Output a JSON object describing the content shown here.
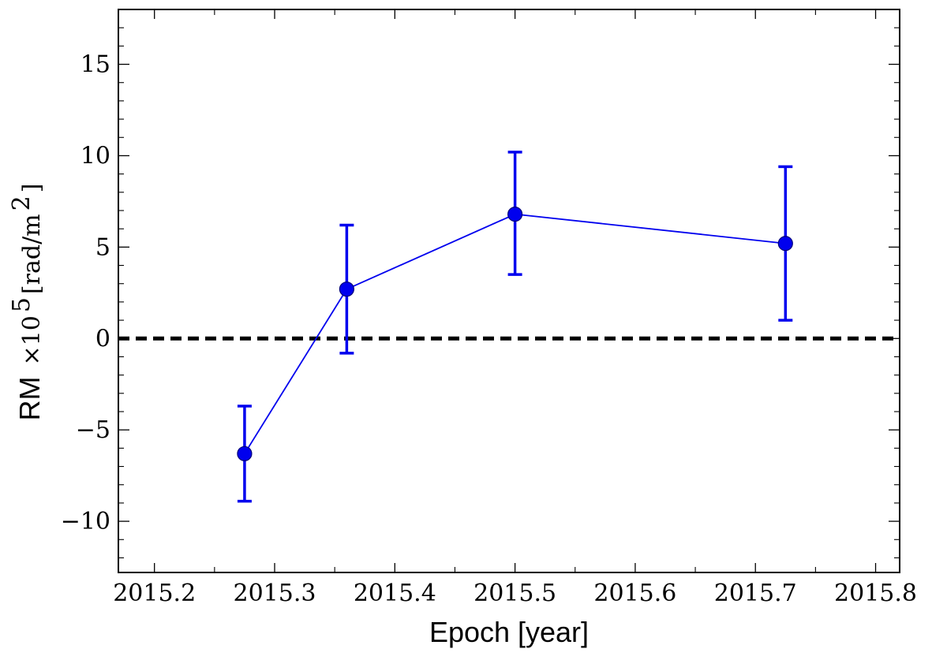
{
  "chart_data": {
    "type": "scatter",
    "xlabel": "Epoch [year]",
    "ylabel": {
      "prefix": "RM",
      "times": "×10",
      "exponent": "5",
      "unit_open": "[rad/m",
      "unit_exp": "2",
      "unit_close": "]"
    },
    "xlim": [
      2015.17,
      2015.82
    ],
    "ylim": [
      -12.8,
      18
    ],
    "xticks": [
      2015.2,
      2015.3,
      2015.4,
      2015.5,
      2015.6,
      2015.7,
      2015.8
    ],
    "xtick_labels": [
      "2015.2",
      "2015.3",
      "2015.4",
      "2015.5",
      "2015.6",
      "2015.7",
      "2015.8"
    ],
    "yticks": [
      -10,
      -5,
      0,
      5,
      10,
      15
    ],
    "ytick_labels": [
      "−10",
      "−5",
      "0",
      "5",
      "10",
      "15"
    ],
    "grid": false,
    "reference_line": {
      "y": 0,
      "style": "dashed",
      "color": "#000000"
    },
    "series": [
      {
        "color": "#0000ee",
        "x": [
          2015.275,
          2015.36,
          2015.5,
          2015.725
        ],
        "y": [
          -6.3,
          2.7,
          6.8,
          5.2
        ],
        "err_low": [
          2.6,
          3.5,
          3.3,
          4.2
        ],
        "err_high": [
          2.6,
          3.5,
          3.4,
          4.2
        ]
      }
    ]
  }
}
